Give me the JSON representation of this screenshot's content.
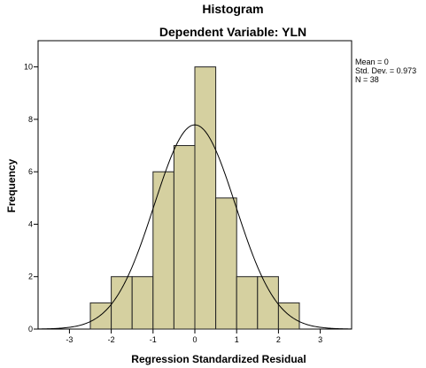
{
  "chart_data": {
    "type": "bar",
    "title": "Histogram",
    "subtitle": "Dependent Variable: YLN",
    "xlabel": "Regression Standardized Residual",
    "ylabel": "Frequency",
    "xlim": [
      -3.75,
      3.75
    ],
    "ylim": [
      0,
      11
    ],
    "x_ticks": [
      "-3",
      "-2",
      "-1",
      "0",
      "1",
      "2",
      "3"
    ],
    "y_ticks": [
      "0",
      "2",
      "4",
      "6",
      "8",
      "10"
    ],
    "bin_width": 0.5,
    "bins": [
      {
        "start": -2.5,
        "end": -2.0,
        "count": 1
      },
      {
        "start": -2.0,
        "end": -1.5,
        "count": 2
      },
      {
        "start": -1.5,
        "end": -1.0,
        "count": 2
      },
      {
        "start": -1.0,
        "end": -0.5,
        "count": 6
      },
      {
        "start": -0.5,
        "end": 0.0,
        "count": 7
      },
      {
        "start": 0.0,
        "end": 0.5,
        "count": 10
      },
      {
        "start": 0.5,
        "end": 1.0,
        "count": 5
      },
      {
        "start": 1.0,
        "end": 1.5,
        "count": 2
      },
      {
        "start": 1.5,
        "end": 2.0,
        "count": 2
      },
      {
        "start": 2.0,
        "end": 2.5,
        "count": 1
      }
    ],
    "normal_curve": {
      "mean": 0,
      "std_dev": 0.973,
      "n": 38
    },
    "stats_lines": [
      "Mean = 0",
      "Std. Dev. = 0.973",
      "N = 38"
    ],
    "grid": false,
    "legend_placement": "right",
    "colors": {
      "bar_fill": "#d5d0a0",
      "bar_stroke": "#222222",
      "curve": "#000000"
    }
  }
}
